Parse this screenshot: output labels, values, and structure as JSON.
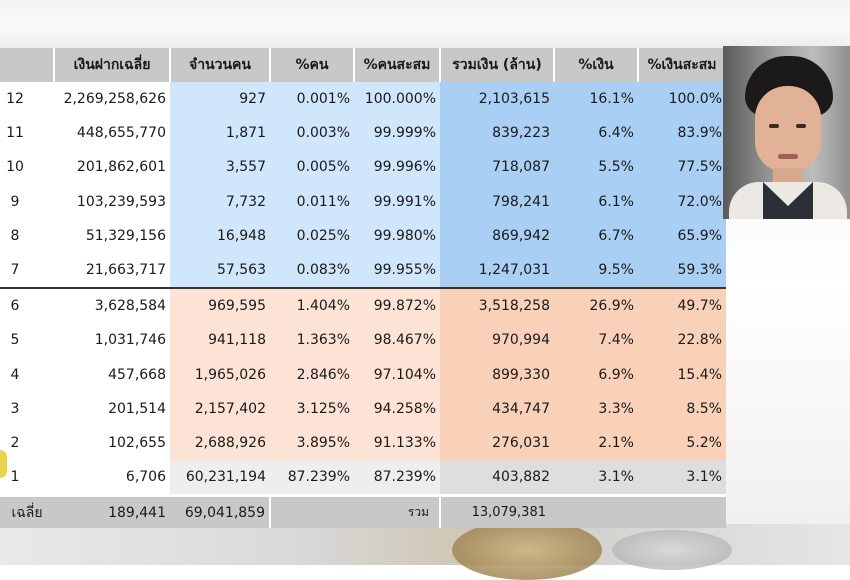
{
  "headers": {
    "deposit": "เงินฝากเฉลี่ย",
    "count": "จำนวนคน",
    "pct_people": "%คน",
    "pct_people_cum": "%คนสะสม",
    "total_money": "รวมเงิน (ล้าน)",
    "pct_money": "%เงิน",
    "pct_money_cum": "%เงินสะสม"
  },
  "rows": [
    {
      "level": "12",
      "deposit": "2,269,258,626",
      "count": "927",
      "pct_people": "0.001%",
      "pct_people_cum": "100.000%",
      "total_money": "2,103,615",
      "pct_money": "16.1%",
      "pct_money_cum": "100.0%"
    },
    {
      "level": "11",
      "deposit": "448,655,770",
      "count": "1,871",
      "pct_people": "0.003%",
      "pct_people_cum": "99.999%",
      "total_money": "839,223",
      "pct_money": "6.4%",
      "pct_money_cum": "83.9%"
    },
    {
      "level": "10",
      "deposit": "201,862,601",
      "count": "3,557",
      "pct_people": "0.005%",
      "pct_people_cum": "99.996%",
      "total_money": "718,087",
      "pct_money": "5.5%",
      "pct_money_cum": "77.5%"
    },
    {
      "level": "9",
      "deposit": "103,239,593",
      "count": "7,732",
      "pct_people": "0.011%",
      "pct_people_cum": "99.991%",
      "total_money": "798,241",
      "pct_money": "6.1%",
      "pct_money_cum": "72.0%"
    },
    {
      "level": "8",
      "deposit": "51,329,156",
      "count": "16,948",
      "pct_people": "0.025%",
      "pct_people_cum": "99.980%",
      "total_money": "869,942",
      "pct_money": "6.7%",
      "pct_money_cum": "65.9%"
    },
    {
      "level": "7",
      "deposit": "21,663,717",
      "count": "57,563",
      "pct_people": "0.083%",
      "pct_people_cum": "99.955%",
      "total_money": "1,247,031",
      "pct_money": "9.5%",
      "pct_money_cum": "59.3%"
    },
    {
      "level": "6",
      "deposit": "3,628,584",
      "count": "969,595",
      "pct_people": "1.404%",
      "pct_people_cum": "99.872%",
      "total_money": "3,518,258",
      "pct_money": "26.9%",
      "pct_money_cum": "49.7%"
    },
    {
      "level": "5",
      "deposit": "1,031,746",
      "count": "941,118",
      "pct_people": "1.363%",
      "pct_people_cum": "98.467%",
      "total_money": "970,994",
      "pct_money": "7.4%",
      "pct_money_cum": "22.8%"
    },
    {
      "level": "4",
      "deposit": "457,668",
      "count": "1,965,026",
      "pct_people": "2.846%",
      "pct_people_cum": "97.104%",
      "total_money": "899,330",
      "pct_money": "6.9%",
      "pct_money_cum": "15.4%"
    },
    {
      "level": "3",
      "deposit": "201,514",
      "count": "2,157,402",
      "pct_people": "3.125%",
      "pct_people_cum": "94.258%",
      "total_money": "434,747",
      "pct_money": "3.3%",
      "pct_money_cum": "8.5%"
    },
    {
      "level": "2",
      "deposit": "102,655",
      "count": "2,688,926",
      "pct_people": "3.895%",
      "pct_people_cum": "91.133%",
      "total_money": "276,031",
      "pct_money": "2.1%",
      "pct_money_cum": "5.2%"
    },
    {
      "level": "1",
      "deposit": "6,706",
      "count": "60,231,194",
      "pct_people": "87.239%",
      "pct_people_cum": "87.239%",
      "total_money": "403,882",
      "pct_money": "3.1%",
      "pct_money_cum": "3.1%"
    }
  ],
  "footer": {
    "label": "เฉลี่ย",
    "avg_deposit": "189,441",
    "total_count": "69,041,859",
    "sum_label": "รวม",
    "total_money": "13,079,381"
  }
}
